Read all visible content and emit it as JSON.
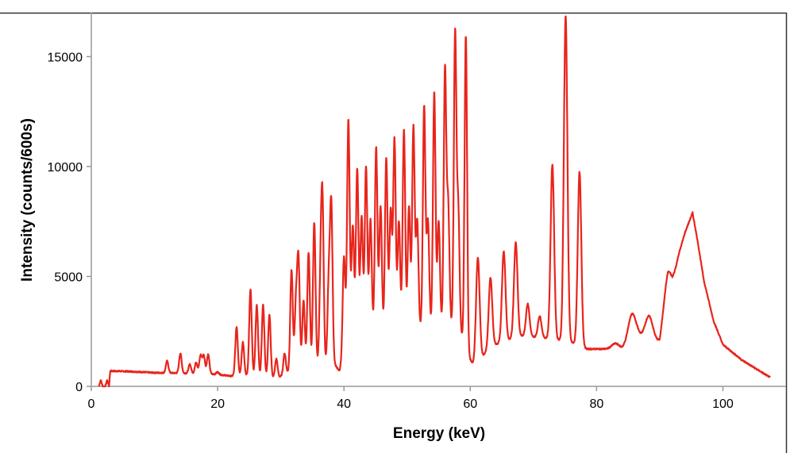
{
  "chart_data": {
    "type": "line",
    "title": "",
    "xlabel": "Energy (keV)",
    "ylabel": "Intensity (counts/600s)",
    "xlim": [
      0,
      110
    ],
    "ylim": [
      0,
      17000
    ],
    "xticks": [
      0,
      20,
      40,
      60,
      80,
      100
    ],
    "yticks": [
      0,
      5000,
      10000,
      15000
    ],
    "grid": false,
    "legend": "none",
    "series_color": "#e8251c",
    "continuum": [
      [
        1.2,
        0
      ],
      [
        1.5,
        300
      ],
      [
        1.8,
        0
      ],
      [
        2.2,
        0
      ],
      [
        2.5,
        300
      ],
      [
        2.8,
        0
      ],
      [
        3.0,
        700
      ],
      [
        6,
        680
      ],
      [
        10,
        620
      ],
      [
        15,
        600
      ],
      [
        20,
        550
      ],
      [
        22,
        470
      ],
      [
        24,
        500
      ],
      [
        27,
        450
      ],
      [
        29.5,
        380
      ],
      [
        31,
        600
      ],
      [
        33,
        800
      ],
      [
        35,
        1000
      ],
      [
        38.5,
        1000
      ],
      [
        39.3,
        700
      ],
      [
        40,
        1500
      ],
      [
        41,
        2300
      ],
      [
        50,
        2600
      ],
      [
        58,
        2800
      ],
      [
        59.8,
        1300
      ],
      [
        60.5,
        1000
      ],
      [
        62,
        1400
      ],
      [
        64,
        1900
      ],
      [
        68,
        2300
      ],
      [
        72,
        2200
      ],
      [
        76,
        2000
      ],
      [
        78.5,
        1700
      ],
      [
        84,
        1700
      ],
      [
        86.5,
        2300
      ],
      [
        90,
        2000
      ],
      [
        91.3,
        4300
      ],
      [
        92,
        4600
      ],
      [
        93,
        6000
      ],
      [
        94,
        7000
      ],
      [
        95.2,
        7900
      ],
      [
        96,
        6600
      ],
      [
        97,
        4800
      ],
      [
        98.5,
        3000
      ],
      [
        100,
        1900
      ],
      [
        103,
        1200
      ],
      [
        107.5,
        400
      ]
    ],
    "peaks": [
      [
        12.0,
        1150
      ],
      [
        14.1,
        1500
      ],
      [
        15.6,
        1000
      ],
      [
        16.6,
        1100
      ],
      [
        17.3,
        1400
      ],
      [
        17.8,
        1400
      ],
      [
        18.5,
        1450
      ],
      [
        20.0,
        650
      ],
      [
        23.0,
        2700
      ],
      [
        24.0,
        2000
      ],
      [
        25.2,
        4400
      ],
      [
        26.2,
        3700
      ],
      [
        27.2,
        3700
      ],
      [
        28.2,
        3250
      ],
      [
        29.3,
        1250
      ],
      [
        30.6,
        1500
      ],
      [
        31.7,
        5300
      ],
      [
        32.4,
        3700
      ],
      [
        32.8,
        5700
      ],
      [
        33.6,
        3900
      ],
      [
        34.4,
        6100
      ],
      [
        35.3,
        7450
      ],
      [
        36.3,
        4500
      ],
      [
        36.6,
        7900
      ],
      [
        37.6,
        4700
      ],
      [
        38.0,
        8100
      ],
      [
        40.0,
        5900
      ],
      [
        40.7,
        12150
      ],
      [
        41.4,
        7300
      ],
      [
        42.1,
        9900
      ],
      [
        42.8,
        7700
      ],
      [
        43.5,
        10000
      ],
      [
        44.2,
        7600
      ],
      [
        45.1,
        10900
      ],
      [
        45.8,
        8200
      ],
      [
        46.7,
        10400
      ],
      [
        47.4,
        8000
      ],
      [
        48.0,
        11250
      ],
      [
        48.7,
        7500
      ],
      [
        49.5,
        11700
      ],
      [
        50.3,
        8200
      ],
      [
        51.0,
        11850
      ],
      [
        51.6,
        7500
      ],
      [
        52.7,
        12750
      ],
      [
        53.3,
        7500
      ],
      [
        54.3,
        13400
      ],
      [
        55.0,
        7500
      ],
      [
        56.0,
        14400
      ],
      [
        56.5,
        8200
      ],
      [
        57.6,
        16050
      ],
      [
        58.1,
        8000
      ],
      [
        59.3,
        15950
      ],
      [
        61.2,
        5850
      ],
      [
        63.2,
        4950
      ],
      [
        65.3,
        6150
      ],
      [
        67.2,
        6550
      ],
      [
        69.1,
        3750
      ],
      [
        71.0,
        3200
      ],
      [
        73.0,
        10100
      ],
      [
        75.1,
        16850
      ],
      [
        77.3,
        9750
      ],
      [
        83.0,
        1950
      ],
      [
        85.6,
        3300
      ],
      [
        88.3,
        3200
      ],
      [
        91.2,
        5050
      ]
    ]
  }
}
